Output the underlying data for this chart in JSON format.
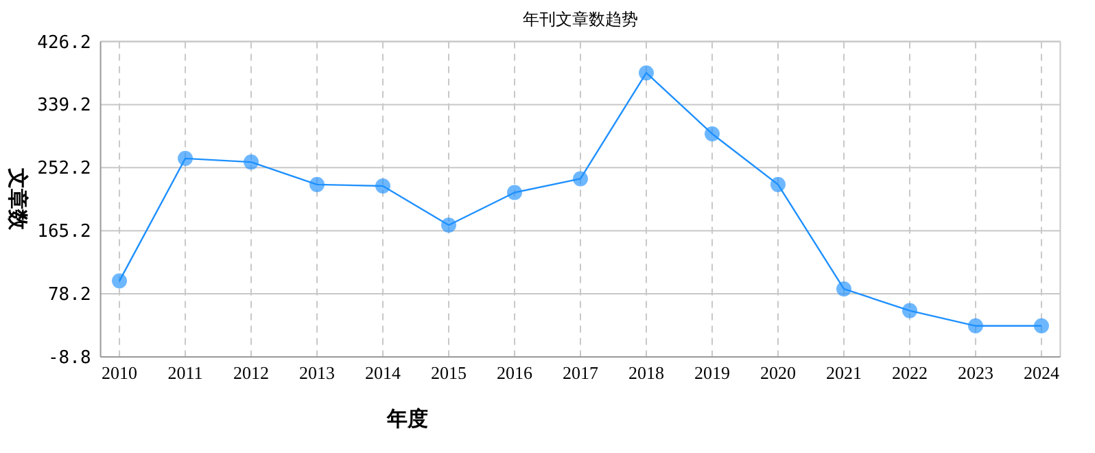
{
  "chart_data": {
    "type": "line",
    "title": "年刊文章数趋势",
    "xlabel": "年度",
    "ylabel": "文章数",
    "categories": [
      "2010",
      "2011",
      "2012",
      "2013",
      "2014",
      "2015",
      "2016",
      "2017",
      "2018",
      "2019",
      "2020",
      "2021",
      "2022",
      "2023",
      "2024"
    ],
    "series": [
      {
        "color": "#1e90ff",
        "values": [
          96,
          265,
          260,
          229,
          227,
          173,
          218,
          237,
          383,
          299,
          229,
          85,
          55,
          34,
          34
        ]
      }
    ],
    "ylim": [
      -8.8,
      426.2
    ],
    "yticks": [
      -8.8,
      78.2,
      165.2,
      252.2,
      339.2,
      426.2
    ],
    "grid": true,
    "marker": "circle",
    "line_style": "solid"
  }
}
